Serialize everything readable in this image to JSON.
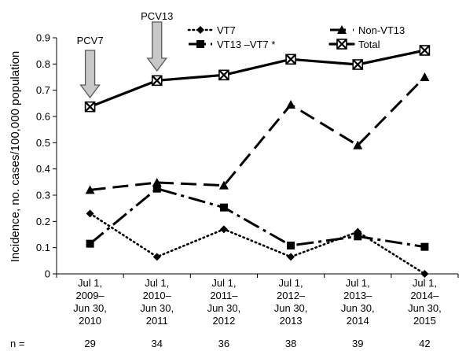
{
  "chart_data": {
    "type": "line",
    "title": "",
    "ylabel": "Incidence, no. cases/100,000 population",
    "ylim": [
      0,
      0.9
    ],
    "yticks": [
      "0",
      "0.1",
      "0.2",
      "0.3",
      "0.4",
      "0.5",
      "0.6",
      "0.7",
      "0.8",
      "0.9"
    ],
    "categories": [
      [
        "Jul 1,",
        "2009–",
        "Jun 30,",
        "2010"
      ],
      [
        "Jul 1,",
        "2010–",
        "Jun 30,",
        "2011"
      ],
      [
        "Jul 1,",
        "2011–",
        "Jun 30,",
        "2012"
      ],
      [
        "Jul 1,",
        "2012–",
        "Jun 30,",
        "2013"
      ],
      [
        "Jul 1,",
        "2013–",
        "Jun 30,",
        "2014"
      ],
      [
        "Jul 1,",
        "2014–",
        "Jun 30,",
        "2015"
      ]
    ],
    "n_label": "n =",
    "n_values": [
      "29",
      "34",
      "36",
      "38",
      "39",
      "42"
    ],
    "legend_position": "top-right",
    "series": [
      {
        "name": "VT7",
        "values": [
          0.23,
          0.065,
          0.17,
          0.065,
          0.16,
          0.0
        ],
        "marker": "diamond",
        "dash": "dotted"
      },
      {
        "name": "VT13 –VT7 *",
        "values": [
          0.115,
          0.325,
          0.253,
          0.108,
          0.143,
          0.103
        ],
        "marker": "square",
        "dash": "dashdot"
      },
      {
        "name": "Non-VT13",
        "values": [
          0.32,
          0.348,
          0.337,
          0.645,
          0.49,
          0.75
        ],
        "marker": "triangle",
        "dash": "dashed"
      },
      {
        "name": "Total",
        "values": [
          0.637,
          0.737,
          0.758,
          0.818,
          0.798,
          0.852
        ],
        "marker": "xbox",
        "dash": "solid"
      }
    ],
    "annotations": [
      {
        "label": "PCV7",
        "category_index": 0,
        "type": "arrow-down"
      },
      {
        "label": "PCV13",
        "category_index": 1,
        "type": "arrow-down"
      }
    ],
    "colors": {
      "lines": "#000000",
      "arrow_fill": "#c8c8c8",
      "arrow_stroke": "#5a5a5a"
    }
  }
}
